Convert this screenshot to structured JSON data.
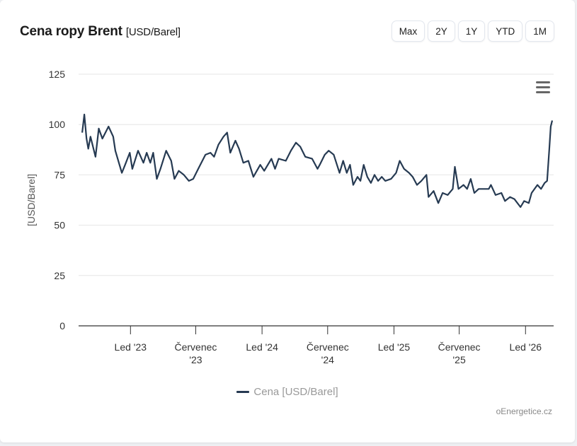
{
  "header": {
    "title": "Cena ropy Brent",
    "unit": "[USD/Barel]"
  },
  "range_buttons": [
    "Max",
    "2Y",
    "1Y",
    "YTD",
    "1M"
  ],
  "menu_icon": "hamburger-menu-icon",
  "credit": "oEnergetice.cz",
  "colors": {
    "line": "#263a52",
    "grid": "#e6e6e6",
    "axis": "#333333"
  },
  "chart_data": {
    "type": "line",
    "title": "Cena ropy Brent [USD/Barel]",
    "ylabel": "[USD/Barel]",
    "xlabel": "",
    "ylim": [
      0,
      125
    ],
    "xlim": [
      "2022-08-10",
      "2026-03-20"
    ],
    "yticks": [
      "0",
      "25",
      "50",
      "75",
      "100",
      "125"
    ],
    "xticks": [
      {
        "date": "2023-01-01",
        "label": "Led '23"
      },
      {
        "date": "2023-07-01",
        "label": "Červenec '23"
      },
      {
        "date": "2024-01-01",
        "label": "Led '24"
      },
      {
        "date": "2024-07-01",
        "label": "Červenec '24"
      },
      {
        "date": "2025-01-01",
        "label": "Led '25"
      },
      {
        "date": "2025-07-01",
        "label": "Červenec '25"
      },
      {
        "date": "2026-01-01",
        "label": "Led '26"
      }
    ],
    "grid": true,
    "legend_position": "bottom",
    "series": [
      {
        "name": "Cena [USD/Barel]",
        "points": [
          [
            "2022-08-20",
            96
          ],
          [
            "2022-08-26",
            105
          ],
          [
            "2022-09-01",
            93
          ],
          [
            "2022-09-06",
            88
          ],
          [
            "2022-09-12",
            94
          ],
          [
            "2022-09-26",
            84
          ],
          [
            "2022-10-05",
            98
          ],
          [
            "2022-10-15",
            93
          ],
          [
            "2022-11-01",
            99
          ],
          [
            "2022-11-14",
            94
          ],
          [
            "2022-11-20",
            87
          ],
          [
            "2022-12-08",
            76
          ],
          [
            "2022-12-17",
            80
          ],
          [
            "2022-12-30",
            86
          ],
          [
            "2023-01-06",
            78
          ],
          [
            "2023-01-22",
            87
          ],
          [
            "2023-02-06",
            81
          ],
          [
            "2023-02-15",
            86
          ],
          [
            "2023-02-25",
            81
          ],
          [
            "2023-03-05",
            86
          ],
          [
            "2023-03-15",
            73
          ],
          [
            "2023-03-25",
            78
          ],
          [
            "2023-04-10",
            87
          ],
          [
            "2023-04-24",
            82
          ],
          [
            "2023-05-03",
            73
          ],
          [
            "2023-05-15",
            77
          ],
          [
            "2023-05-29",
            75
          ],
          [
            "2023-06-12",
            72
          ],
          [
            "2023-06-24",
            73
          ],
          [
            "2023-07-08",
            78
          ],
          [
            "2023-07-28",
            85
          ],
          [
            "2023-08-11",
            86
          ],
          [
            "2023-08-21",
            84
          ],
          [
            "2023-09-02",
            90
          ],
          [
            "2023-09-16",
            94
          ],
          [
            "2023-09-26",
            96
          ],
          [
            "2023-10-05",
            86
          ],
          [
            "2023-10-19",
            92
          ],
          [
            "2023-10-29",
            88
          ],
          [
            "2023-11-10",
            81
          ],
          [
            "2023-11-24",
            82
          ],
          [
            "2023-12-08",
            74
          ],
          [
            "2023-12-27",
            80
          ],
          [
            "2024-01-07",
            77
          ],
          [
            "2024-01-27",
            83
          ],
          [
            "2024-02-06",
            78
          ],
          [
            "2024-02-16",
            83
          ],
          [
            "2024-03-07",
            82
          ],
          [
            "2024-03-21",
            87
          ],
          [
            "2024-04-04",
            91
          ],
          [
            "2024-04-16",
            89
          ],
          [
            "2024-04-30",
            84
          ],
          [
            "2024-05-19",
            83
          ],
          [
            "2024-06-03",
            78
          ],
          [
            "2024-06-09",
            80
          ],
          [
            "2024-06-23",
            85
          ],
          [
            "2024-07-04",
            87
          ],
          [
            "2024-07-18",
            85
          ],
          [
            "2024-08-03",
            76
          ],
          [
            "2024-08-13",
            82
          ],
          [
            "2024-08-23",
            76
          ],
          [
            "2024-09-01",
            80
          ],
          [
            "2024-09-10",
            70
          ],
          [
            "2024-09-22",
            74
          ],
          [
            "2024-09-30",
            72
          ],
          [
            "2024-10-09",
            80
          ],
          [
            "2024-10-19",
            74
          ],
          [
            "2024-10-29",
            71
          ],
          [
            "2024-11-08",
            75
          ],
          [
            "2024-11-18",
            72
          ],
          [
            "2024-11-28",
            74
          ],
          [
            "2024-12-08",
            72
          ],
          [
            "2024-12-24",
            73
          ],
          [
            "2025-01-07",
            76
          ],
          [
            "2025-01-17",
            82
          ],
          [
            "2025-01-29",
            78
          ],
          [
            "2025-02-12",
            76
          ],
          [
            "2025-02-22",
            74
          ],
          [
            "2025-03-06",
            70
          ],
          [
            "2025-03-18",
            72
          ],
          [
            "2025-04-01",
            75
          ],
          [
            "2025-04-07",
            64
          ],
          [
            "2025-04-21",
            67
          ],
          [
            "2025-05-04",
            61
          ],
          [
            "2025-05-16",
            66
          ],
          [
            "2025-05-30",
            65
          ],
          [
            "2025-06-13",
            68
          ],
          [
            "2025-06-19",
            79
          ],
          [
            "2025-06-29",
            68
          ],
          [
            "2025-07-13",
            70
          ],
          [
            "2025-07-23",
            68
          ],
          [
            "2025-08-02",
            73
          ],
          [
            "2025-08-12",
            66
          ],
          [
            "2025-08-24",
            68
          ],
          [
            "2025-09-07",
            68
          ],
          [
            "2025-09-21",
            68
          ],
          [
            "2025-09-27",
            70
          ],
          [
            "2025-10-10",
            65
          ],
          [
            "2025-10-26",
            66
          ],
          [
            "2025-11-05",
            62
          ],
          [
            "2025-11-19",
            64
          ],
          [
            "2025-12-01",
            63
          ],
          [
            "2025-12-18",
            59
          ],
          [
            "2025-12-28",
            62
          ],
          [
            "2026-01-10",
            61
          ],
          [
            "2026-01-18",
            66
          ],
          [
            "2026-02-03",
            70
          ],
          [
            "2026-02-13",
            68
          ],
          [
            "2026-02-23",
            71
          ],
          [
            "2026-03-02",
            72
          ],
          [
            "2026-03-08",
            88
          ],
          [
            "2026-03-12",
            99
          ],
          [
            "2026-03-16",
            102
          ]
        ]
      }
    ]
  }
}
